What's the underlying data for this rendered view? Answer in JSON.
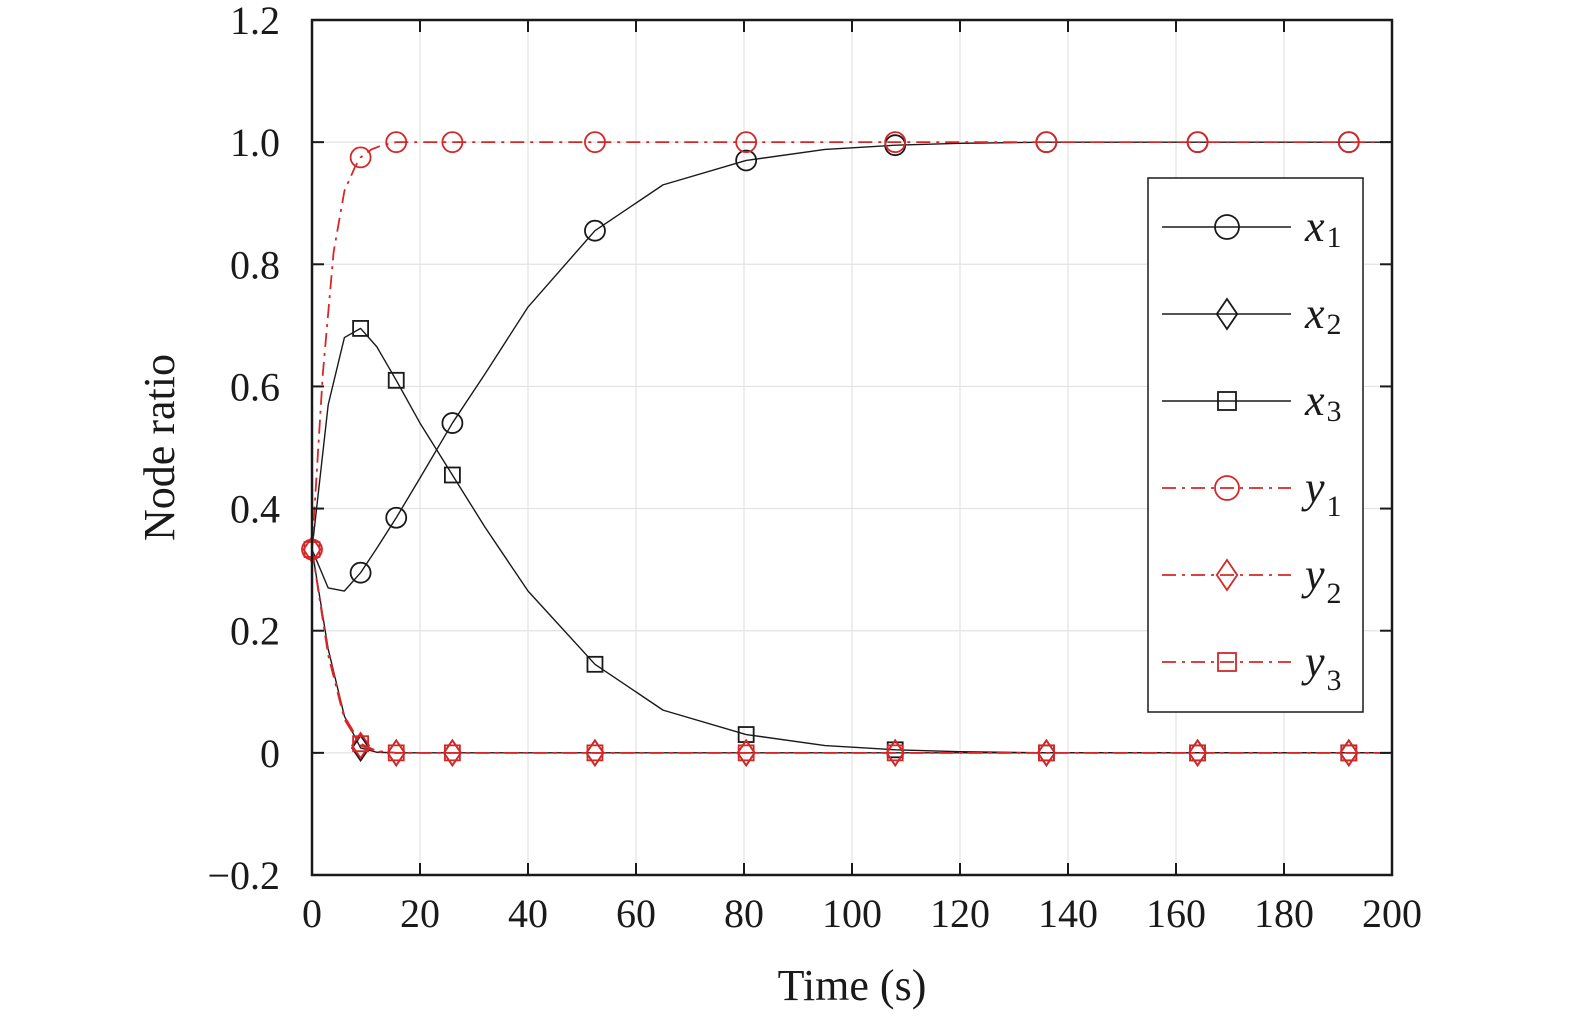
{
  "chart_data": {
    "type": "line",
    "xlabel": "Time (s)",
    "ylabel": "Node ratio",
    "xlim": [
      0,
      200
    ],
    "ylim": [
      -0.2,
      1.2
    ],
    "xticks": [
      0,
      20,
      40,
      60,
      80,
      100,
      120,
      140,
      160,
      180,
      200
    ],
    "yticks": [
      -0.2,
      0,
      0.2,
      0.4,
      0.6,
      0.8,
      1.0,
      1.2
    ],
    "ytick_labels": [
      "−0.2",
      "0",
      "0.2",
      "0.4",
      "0.6",
      "0.8",
      "1.0",
      "1.2"
    ],
    "grid": true,
    "legend_position": "right",
    "series": [
      {
        "name": "x",
        "sub": "1",
        "color": "#1a1a1a",
        "dash": "solid",
        "marker": "circle",
        "x": [
          0,
          3,
          6,
          9,
          12,
          15.6,
          20,
          26,
          32,
          40,
          52.4,
          65,
          80.4,
          95,
          108,
          120,
          136,
          150,
          164,
          180,
          192,
          200
        ],
        "y": [
          0.333,
          0.27,
          0.265,
          0.295,
          0.335,
          0.385,
          0.45,
          0.54,
          0.62,
          0.73,
          0.855,
          0.93,
          0.97,
          0.988,
          0.995,
          0.998,
          1.0,
          1.0,
          1.0,
          1.0,
          1.0,
          1.0
        ],
        "marker_x": [
          9,
          15.6,
          26,
          52.4,
          80.4,
          108,
          136,
          164,
          192
        ],
        "marker_y": [
          0.295,
          0.385,
          0.54,
          0.855,
          0.97,
          0.995,
          1.0,
          1.0,
          1.0
        ]
      },
      {
        "name": "x",
        "sub": "2",
        "color": "#1a1a1a",
        "dash": "solid",
        "marker": "diamond",
        "x": [
          0,
          3,
          6,
          9,
          12,
          15.6,
          20,
          26,
          52.4,
          80.4,
          108,
          136,
          164,
          192,
          200
        ],
        "y": [
          0.333,
          0.17,
          0.06,
          0.008,
          0.001,
          0.0,
          0.0,
          0.0,
          0.0,
          0.0,
          0.0,
          0.0,
          0.0,
          0.0,
          0.0
        ],
        "marker_x": [
          9,
          15.6,
          26,
          52.4,
          80.4,
          108,
          136,
          164,
          192
        ],
        "marker_y": [
          0.008,
          0.0,
          0.0,
          0.0,
          0.0,
          0.0,
          0.0,
          0.0,
          0.0
        ]
      },
      {
        "name": "x",
        "sub": "3",
        "color": "#1a1a1a",
        "dash": "solid",
        "marker": "square",
        "x": [
          0,
          3,
          6,
          9,
          12,
          15.6,
          20,
          26,
          32,
          40,
          52.4,
          65,
          80.4,
          95,
          108,
          120,
          136,
          150,
          164,
          180,
          192,
          200
        ],
        "y": [
          0.333,
          0.57,
          0.68,
          0.695,
          0.665,
          0.61,
          0.54,
          0.455,
          0.37,
          0.265,
          0.145,
          0.07,
          0.03,
          0.012,
          0.005,
          0.002,
          0.0,
          0.0,
          0.0,
          0.0,
          0.0,
          0.0
        ],
        "marker_x": [
          9,
          15.6,
          26,
          52.4,
          80.4,
          108,
          136,
          164,
          192
        ],
        "marker_y": [
          0.695,
          0.61,
          0.455,
          0.145,
          0.03,
          0.005,
          0.0,
          0.0,
          0.0
        ]
      },
      {
        "name": "y",
        "sub": "1",
        "color": "#d62728",
        "dash": "dashdot",
        "marker": "circle",
        "x": [
          0,
          2,
          4,
          6,
          8,
          9,
          11,
          13,
          15.6,
          20,
          26,
          52.4,
          80.4,
          108,
          136,
          164,
          192,
          200
        ],
        "y": [
          0.333,
          0.62,
          0.82,
          0.92,
          0.96,
          0.975,
          0.988,
          0.995,
          1.0,
          1.0,
          1.0,
          1.0,
          1.0,
          1.0,
          1.0,
          1.0,
          1.0,
          1.0
        ],
        "marker_x": [
          0,
          9,
          15.6,
          26,
          52.4,
          80.4,
          108,
          136,
          164,
          192
        ],
        "marker_y": [
          0.333,
          0.975,
          1.0,
          1.0,
          1.0,
          1.0,
          1.0,
          1.0,
          1.0,
          1.0
        ]
      },
      {
        "name": "y",
        "sub": "2",
        "color": "#d62728",
        "dash": "dashdot",
        "marker": "diamond",
        "x": [
          0,
          3,
          6,
          9,
          12,
          15.6,
          20,
          26,
          52.4,
          80.4,
          108,
          136,
          164,
          192,
          200
        ],
        "y": [
          0.333,
          0.16,
          0.055,
          0.012,
          0.002,
          0.0,
          0.0,
          0.0,
          0.0,
          0.0,
          0.0,
          0.0,
          0.0,
          0.0,
          0.0
        ],
        "marker_x": [
          0,
          9,
          15.6,
          26,
          52.4,
          80.4,
          108,
          136,
          164,
          192
        ],
        "marker_y": [
          0.333,
          0.012,
          0.0,
          0.0,
          0.0,
          0.0,
          0.0,
          0.0,
          0.0,
          0.0
        ]
      },
      {
        "name": "y",
        "sub": "3",
        "color": "#d62728",
        "dash": "dashdot",
        "marker": "square",
        "x": [
          0,
          3,
          6,
          9,
          12,
          15.6,
          20,
          26,
          52.4,
          80.4,
          108,
          136,
          164,
          192,
          200
        ],
        "y": [
          0.333,
          0.165,
          0.06,
          0.015,
          0.003,
          0.0,
          0.0,
          0.0,
          0.0,
          0.0,
          0.0,
          0.0,
          0.0,
          0.0,
          0.0
        ],
        "marker_x": [
          0,
          9,
          15.6,
          26,
          52.4,
          80.4,
          108,
          136,
          164,
          192
        ],
        "marker_y": [
          0.333,
          0.015,
          0.0,
          0.0,
          0.0,
          0.0,
          0.0,
          0.0,
          0.0,
          0.0
        ]
      }
    ]
  }
}
